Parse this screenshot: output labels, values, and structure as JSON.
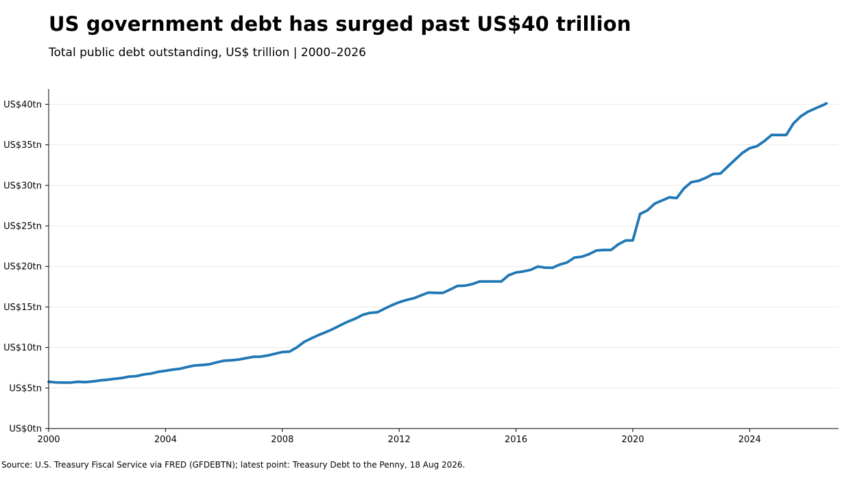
{
  "header": {
    "title": "US government debt has surged past US$40 trillion",
    "subtitle": "Total public debt outstanding, US$ trillion | 2000–2026"
  },
  "footer": {
    "source": "Source: U.S. Treasury Fiscal Service via FRED (GFDEBTN); latest point: Treasury Debt to the Penny, 18 Aug 2026."
  },
  "colors": {
    "line": "#1f77b4",
    "grid": "#e8e8e8",
    "axis": "#000000"
  },
  "chart_data": {
    "type": "line",
    "title": "US government debt has surged past US$40 trillion",
    "subtitle": "Total public debt outstanding, US$ trillion | 2000–2026",
    "xlabel": "",
    "ylabel": "",
    "xlim": [
      2000,
      2026.75
    ],
    "ylim": [
      0,
      42
    ],
    "grid": "horizontal",
    "legend": "none",
    "x_ticks": [
      2000,
      2004,
      2008,
      2012,
      2016,
      2020,
      2024
    ],
    "x_tick_labels": [
      "2000",
      "2004",
      "2008",
      "2012",
      "2016",
      "2020",
      "2024"
    ],
    "y_ticks": [
      0,
      5,
      10,
      15,
      20,
      25,
      30,
      35,
      40
    ],
    "y_tick_labels": [
      "US$0tn",
      "US$5tn",
      "US$10tn",
      "US$15tn",
      "US$20tn",
      "US$25tn",
      "US$30tn",
      "US$35tn",
      "US$40tn"
    ],
    "series": [
      {
        "x": [
          2000.0,
          2000.25,
          2000.5,
          2000.75,
          2001.0,
          2001.25,
          2001.5,
          2001.75,
          2002.0,
          2002.25,
          2002.5,
          2002.75,
          2003.0,
          2003.25,
          2003.5,
          2003.75,
          2004.0,
          2004.25,
          2004.5,
          2004.75,
          2005.0,
          2005.25,
          2005.5,
          2005.75,
          2006.0,
          2006.25,
          2006.5,
          2006.75,
          2007.0,
          2007.25,
          2007.5,
          2007.75,
          2008.0,
          2008.25,
          2008.5,
          2008.75,
          2009.0,
          2009.25,
          2009.5,
          2009.75,
          2010.0,
          2010.25,
          2010.5,
          2010.75,
          2011.0,
          2011.25,
          2011.5,
          2011.75,
          2012.0,
          2012.25,
          2012.5,
          2012.75,
          2013.0,
          2013.25,
          2013.5,
          2013.75,
          2014.0,
          2014.25,
          2014.5,
          2014.75,
          2015.0,
          2015.25,
          2015.5,
          2015.75,
          2016.0,
          2016.25,
          2016.5,
          2016.75,
          2017.0,
          2017.25,
          2017.5,
          2017.75,
          2018.0,
          2018.25,
          2018.5,
          2018.75,
          2019.0,
          2019.25,
          2019.5,
          2019.75,
          2020.0,
          2020.25,
          2020.5,
          2020.75,
          2021.0,
          2021.25,
          2021.5,
          2021.75,
          2022.0,
          2022.25,
          2022.5,
          2022.75,
          2023.0,
          2023.25,
          2023.5,
          2023.75,
          2024.0,
          2024.25,
          2024.5,
          2024.75,
          2025.0,
          2025.25,
          2025.5,
          2025.75,
          2026.0,
          2026.25,
          2026.5,
          2026.63
        ],
        "values": [
          5.77,
          5.69,
          5.67,
          5.67,
          5.77,
          5.73,
          5.81,
          5.94,
          6.01,
          6.13,
          6.23,
          6.41,
          6.46,
          6.67,
          6.78,
          7.0,
          7.13,
          7.27,
          7.38,
          7.6,
          7.78,
          7.84,
          7.93,
          8.17,
          8.37,
          8.42,
          8.51,
          8.68,
          8.85,
          8.87,
          9.01,
          9.23,
          9.44,
          9.49,
          10.02,
          10.7,
          11.13,
          11.55,
          11.91,
          12.31,
          12.77,
          13.2,
          13.56,
          14.03,
          14.27,
          14.34,
          14.79,
          15.22,
          15.58,
          15.86,
          16.07,
          16.43,
          16.77,
          16.74,
          16.74,
          17.16,
          17.6,
          17.63,
          17.82,
          18.14,
          18.15,
          18.15,
          18.15,
          18.92,
          19.26,
          19.38,
          19.58,
          19.98,
          19.85,
          19.84,
          20.24,
          20.49,
          21.09,
          21.2,
          21.51,
          21.97,
          22.03,
          22.03,
          22.72,
          23.2,
          23.22,
          26.48,
          26.92,
          27.75,
          28.13,
          28.53,
          28.43,
          29.62,
          30.4,
          30.57,
          30.93,
          31.41,
          31.46,
          32.33,
          33.17,
          34.0,
          34.59,
          34.83,
          35.46,
          36.22,
          36.22,
          36.22,
          37.64,
          38.52,
          39.1,
          39.5,
          39.88,
          40.12
        ]
      }
    ]
  }
}
